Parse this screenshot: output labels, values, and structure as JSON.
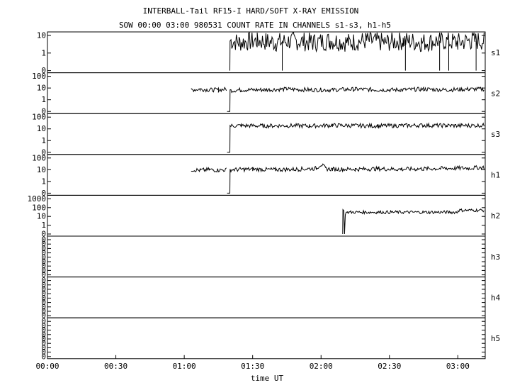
{
  "chart_data": {
    "type": "line",
    "title": "INTERBALL-Tail RF15-I HARD/SOFT X-RAY EMISSION",
    "subtitle": "SOW 00:00 03:00 980531  COUNT RATE IN CHANNELS s1-s3, h1-h5",
    "xlabel": "time UT",
    "x_unit": "minutes",
    "xlim": [
      0,
      192
    ],
    "x_ticks": [
      0,
      30,
      60,
      90,
      120,
      150,
      180
    ],
    "x_tick_labels": [
      "00:00",
      "00:30",
      "01:00",
      "01:30",
      "02:00",
      "02:30",
      "03:00"
    ],
    "yscale": "log",
    "grid": false,
    "panels": [
      {
        "name": "s1",
        "y_tick_labels": [
          "10",
          "1",
          "0"
        ],
        "segments": [
          {
            "x": [
              80,
              80.1,
              84,
              92,
              100,
              108,
              116,
              124,
              132,
              140,
              148,
              156,
              164,
              172,
              180,
              186,
              191.5
            ],
            "y": [
              0,
              5,
              4,
              5,
              4,
              5,
              4,
              5,
              4,
              5,
              4,
              5,
              4,
              5,
              4,
              5,
              5
            ]
          }
        ],
        "dropouts": [
          103,
          157,
          172,
          176,
          188
        ]
      },
      {
        "name": "s2",
        "y_tick_labels": [
          "100",
          "10",
          "1",
          "0"
        ],
        "segments": [
          {
            "x": [
              63,
              67,
              71,
              75,
              78.5
            ],
            "y": [
              7,
              8,
              7,
              7,
              8
            ]
          },
          {
            "x": [
              78.8,
              80,
              80.1,
              85,
              95,
              105,
              115,
              125,
              135,
              145,
              155,
              165,
              175,
              185,
              191.5
            ],
            "y": [
              0,
              0,
              6,
              7,
              7,
              8,
              7,
              7,
              8,
              7,
              7,
              8,
              7,
              8,
              8
            ]
          }
        ],
        "dropouts": []
      },
      {
        "name": "s3",
        "y_tick_labels": [
          "100",
          "10",
          "1",
          "0"
        ],
        "segments": [
          {
            "x": [
              78.8,
              80,
              80.1,
              85,
              95,
              105,
              115,
              125,
              135,
              145,
              155,
              165,
              175,
              185,
              191.5
            ],
            "y": [
              0,
              0,
              18,
              19,
              18,
              19,
              18,
              20,
              19,
              18,
              19,
              20,
              19,
              19,
              20
            ]
          }
        ],
        "dropouts": []
      },
      {
        "name": "h1",
        "y_tick_labels": [
          "100",
          "10",
          "1",
          "0"
        ],
        "segments": [
          {
            "x": [
              63,
              67,
              71,
              75,
              78.5
            ],
            "y": [
              10,
              9,
              10,
              9,
              10
            ]
          },
          {
            "x": [
              78.8,
              80,
              80.1,
              90,
              100,
              110,
              118,
              120,
              122,
              125,
              135,
              145,
              155,
              165,
              175,
              185,
              191.5
            ],
            "y": [
              0,
              0,
              10,
              11,
              10,
              11,
              13,
              28,
              12,
              11,
              11,
              12,
              11,
              12,
              13,
              14,
              16
            ]
          }
        ],
        "dropouts": []
      },
      {
        "name": "h2",
        "y_tick_labels": [
          "1000",
          "100",
          "10",
          "1",
          "0"
        ],
        "segments": [
          {
            "x": [
              129.5,
              129.6,
              130,
              130.3,
              131,
              131.5,
              180,
              180.1,
              191.5
            ],
            "y": [
              0,
              60,
              45,
              0,
              30,
              30,
              30,
              50,
              50
            ]
          }
        ],
        "dropouts": []
      },
      {
        "name": "h3",
        "y_tick_labels": [
          "0",
          "0",
          "0",
          "0",
          "0",
          "0",
          "0",
          "0",
          "0"
        ],
        "segments": [],
        "dropouts": []
      },
      {
        "name": "h4",
        "y_tick_labels": [
          "0",
          "0",
          "0",
          "0",
          "0",
          "0",
          "0",
          "0",
          "0"
        ],
        "segments": [],
        "dropouts": []
      },
      {
        "name": "h5",
        "y_tick_labels": [
          "0",
          "0",
          "0",
          "0",
          "0",
          "0",
          "0",
          "0",
          "0"
        ],
        "segments": [],
        "dropouts": []
      }
    ]
  }
}
